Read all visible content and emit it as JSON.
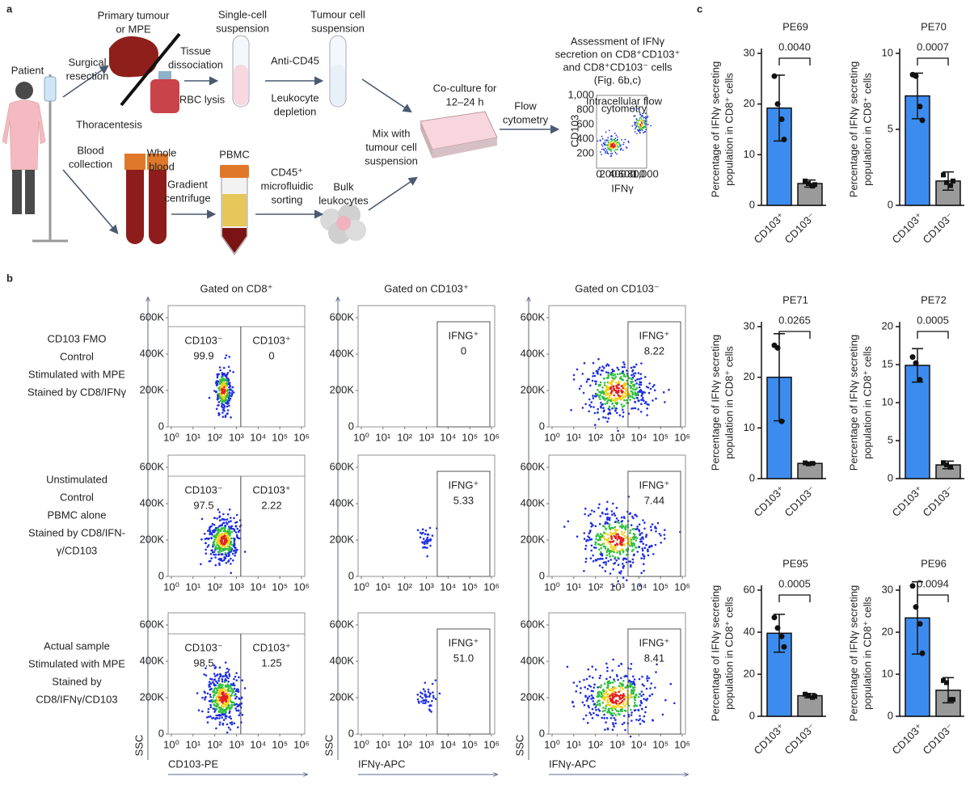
{
  "panel_a": {
    "letter": "a",
    "labels": [
      [
        "Patient"
      ],
      [
        "Surgical",
        "resection"
      ],
      [
        "Primary tumour",
        "or MPE"
      ],
      [
        "Thoracentesis"
      ],
      [
        "Tissue",
        "dissociation"
      ],
      [
        "RBC lysis"
      ],
      [
        "Single-cell",
        "suspension"
      ],
      [
        "Anti-CD45"
      ],
      [
        "Leukocyte",
        "depletion"
      ],
      [
        "Tumour cell",
        "suspension"
      ],
      [
        "Blood",
        "collection"
      ],
      [
        "Whole",
        "blood"
      ],
      [
        "Gradient",
        "centrifuge"
      ],
      [
        "PBMC"
      ],
      [
        "CD45⁺",
        "microfluidic",
        "sorting"
      ],
      [
        "Bulk",
        "leukocytes"
      ],
      [
        "Mix with",
        "tumour cell",
        "suspension"
      ],
      [
        "Co-culture for",
        "12–24 h"
      ],
      [
        "Flow",
        "cytometry"
      ],
      [
        "Assessment of IFNγ",
        "secretion on CD8⁺CD103⁺",
        "and CD8⁺CD103⁻ cells",
        "(Fig. 6b,c)"
      ]
    ],
    "inset": {
      "title": [
        "Intracellular flow",
        "cytometry"
      ],
      "xlabel": "IFNγ",
      "ylabel": "CD103",
      "xticks": [
        "0",
        "200",
        "400",
        "600",
        "800",
        "1,000"
      ],
      "yticks": [
        "200",
        "400",
        "600",
        "800",
        "1,000"
      ]
    }
  },
  "panel_b": {
    "letter": "b",
    "columns": [
      "Gated on CD8⁺",
      "Gated on CD103⁺",
      "Gated on CD103⁻"
    ],
    "xticks": [
      "10⁰",
      "10¹",
      "10²",
      "10³",
      "10⁴",
      "10⁵",
      "10⁶"
    ],
    "yticks": [
      "0",
      "200K",
      "400K",
      "600K"
    ],
    "ylabel": "SSC",
    "xlabels": [
      "CD103-PE",
      "IFNγ-APC",
      "IFNγ-APC"
    ],
    "rows": [
      {
        "label": [
          "CD103 FMO",
          "Control",
          "Stimulated with MPE",
          "Stained by CD8/IFNγ"
        ],
        "gates": [
          [
            {
              "name": "CD103⁻",
              "value": "99.9"
            },
            {
              "name": "CD103⁺",
              "value": "0"
            }
          ],
          [
            {
              "name": "IFNG⁺",
              "value": "0"
            }
          ],
          [
            {
              "name": "IFNG⁺",
              "value": "8.22"
            }
          ]
        ]
      },
      {
        "label": [
          "Unstimulated",
          "Control",
          "PBMC alone",
          "Stained by CD8/IFN-",
          "γ/CD103"
        ],
        "gates": [
          [
            {
              "name": "CD103⁻",
              "value": "97.5"
            },
            {
              "name": "CD103⁺",
              "value": "2.22"
            }
          ],
          [
            {
              "name": "IFNG⁺",
              "value": "5.33"
            }
          ],
          [
            {
              "name": "IFNG⁺",
              "value": "7.44"
            }
          ]
        ]
      },
      {
        "label": [
          "Actual sample",
          "Stimulated with MPE",
          "Stained by",
          "CD8/IFNγ/CD103"
        ],
        "gates": [
          [
            {
              "name": "CD103⁻",
              "value": "98.5"
            },
            {
              "name": "CD103⁺",
              "value": "1.25"
            }
          ],
          [
            {
              "name": "IFNG⁺",
              "value": "51.0"
            }
          ],
          [
            {
              "name": "IFNG⁺",
              "value": "8.41"
            }
          ]
        ]
      }
    ]
  },
  "panel_c": {
    "letter": "c"
  },
  "chart_data": [
    {
      "type": "bar",
      "title": "PE69",
      "categories": [
        "CD103⁺",
        "CD103⁻"
      ],
      "values": [
        19.2,
        4.3
      ],
      "errors": [
        6.5,
        0.7
      ],
      "points": [
        [
          25.5,
          20,
          17,
          13
        ],
        [
          4.8,
          4.3,
          3.8,
          4.1
        ]
      ],
      "colors": [
        "#3c8cf0",
        "#9a9a9a"
      ],
      "markers": [
        "circle",
        "square"
      ],
      "ylabel": [
        "Percentage of IFNγ secreting",
        "population in CD8⁺ cells"
      ],
      "annotation": "0.0040",
      "ylim": [
        0,
        30
      ],
      "yticks": [
        0,
        10,
        20,
        30
      ]
    },
    {
      "type": "bar",
      "title": "PE70",
      "categories": [
        "CD103⁺",
        "CD103⁻"
      ],
      "values": [
        7.2,
        1.6
      ],
      "errors": [
        1.5,
        0.6
      ],
      "points": [
        [
          8.6,
          8.5,
          6.5,
          5.6
        ],
        [
          2.0,
          1.5,
          1.3,
          1.6
        ]
      ],
      "colors": [
        "#3c8cf0",
        "#9a9a9a"
      ],
      "markers": [
        "circle",
        "square"
      ],
      "ylabel": [
        "Percentage of IFNγ secreting",
        "population in CD8⁺ cells"
      ],
      "annotation": "0.0007",
      "ylim": [
        0,
        10
      ],
      "yticks": [
        0,
        5,
        10
      ]
    },
    {
      "type": "bar",
      "title": "PE71",
      "categories": [
        "CD103⁺",
        "CD103⁻"
      ],
      "values": [
        20.0,
        3.0
      ],
      "errors": [
        8.6,
        0.2
      ],
      "points": [
        [
          26.3,
          25.8,
          11.3
        ],
        [
          3.1,
          2.9,
          3.0
        ]
      ],
      "colors": [
        "#3c8cf0",
        "#9a9a9a"
      ],
      "markers": [
        "circle",
        "square"
      ],
      "ylabel": [
        "Percentage of IFNγ secreting",
        "population in CD8⁺ cells"
      ],
      "annotation": "0.0265",
      "ylim": [
        0,
        30
      ],
      "yticks": [
        0,
        10,
        20,
        30
      ]
    },
    {
      "type": "bar",
      "title": "PE72",
      "categories": [
        "CD103⁺",
        "CD103⁻"
      ],
      "values": [
        14.9,
        1.8
      ],
      "errors": [
        2.2,
        0.5
      ],
      "points": [
        [
          16,
          15.2,
          13
        ],
        [
          2.1,
          1.8,
          1.5
        ]
      ],
      "colors": [
        "#3c8cf0",
        "#9a9a9a"
      ],
      "markers": [
        "circle",
        "square"
      ],
      "ylabel": [
        "Percentage of IFNγ secreting",
        "population in CD8⁺ cells"
      ],
      "annotation": "0.0005",
      "ylim": [
        0,
        20
      ],
      "yticks": [
        0,
        5,
        10,
        15,
        20
      ]
    },
    {
      "type": "bar",
      "title": "PE95",
      "categories": [
        "CD103⁺",
        "CD103⁻"
      ],
      "values": [
        39.5,
        9.8
      ],
      "errors": [
        9,
        1
      ],
      "points": [
        [
          47,
          42,
          38,
          33
        ],
        [
          10.5,
          10,
          9,
          9.5
        ]
      ],
      "colors": [
        "#3c8cf0",
        "#9a9a9a"
      ],
      "markers": [
        "circle",
        "square"
      ],
      "ylabel": [
        "Percentage of IFNγ secreting",
        "population in CD8⁺ cells"
      ],
      "annotation": "0.0005",
      "ylim": [
        0,
        60
      ],
      "yticks": [
        0,
        20,
        40,
        60
      ]
    },
    {
      "type": "bar",
      "title": "PE96",
      "categories": [
        "CD103⁺",
        "CD103⁻"
      ],
      "values": [
        23.4,
        6.2
      ],
      "errors": [
        8.6,
        3
      ],
      "points": [
        [
          31,
          26,
          22,
          15
        ],
        [
          8.5,
          8,
          4,
          4
        ]
      ],
      "colors": [
        "#3c8cf0",
        "#9a9a9a"
      ],
      "markers": [
        "circle",
        "square"
      ],
      "ylabel": [
        "Percentage of IFNγ secreting",
        "population in CD8⁺ cells"
      ],
      "annotation": "0.0094",
      "ylim": [
        0,
        30
      ],
      "yticks": [
        0,
        10,
        20,
        30
      ]
    }
  ]
}
